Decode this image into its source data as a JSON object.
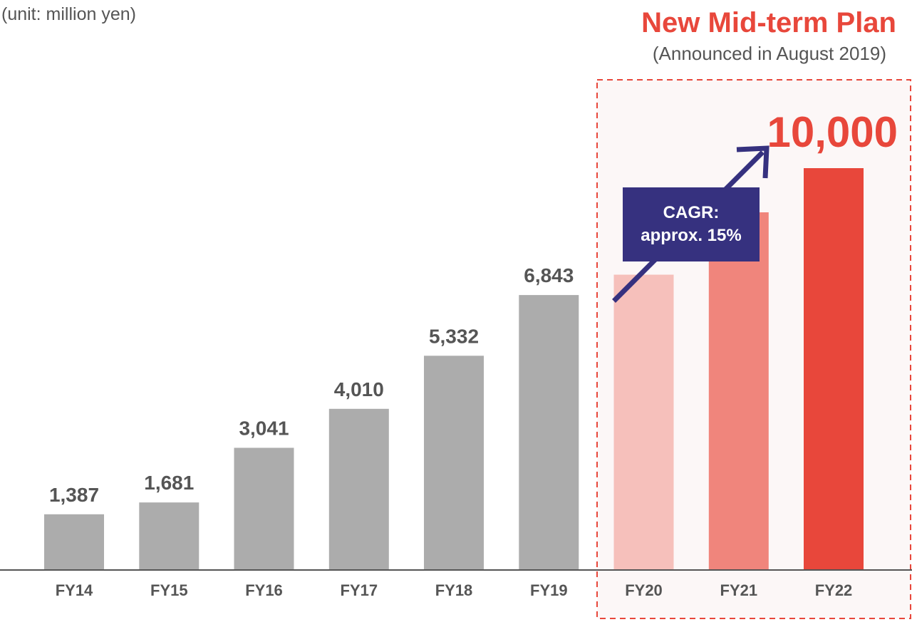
{
  "header": {
    "unit": "(unit: million yen)",
    "plan_title": "New Mid-term Plan",
    "plan_subtitle": "(Announced in August 2019)"
  },
  "callout": {
    "line1": "CAGR:",
    "line2": "approx. 15%",
    "color": "#36317f"
  },
  "colors": {
    "actual": "#acacac",
    "plan_fy20": "#f6c0bb",
    "plan_fy21": "#f0857c",
    "plan_fy22": "#e8473b",
    "accent": "#e8473b",
    "highlight_fill": "#fcf7f7",
    "text": "#555555"
  },
  "chart_data": {
    "type": "bar",
    "title": "",
    "xlabel": "",
    "ylabel": "",
    "ylim": [
      0,
      10000
    ],
    "categories": [
      "FY14",
      "FY15",
      "FY16",
      "FY17",
      "FY18",
      "FY19",
      "FY20",
      "FY21",
      "FY22"
    ],
    "values": [
      1387,
      1681,
      3041,
      4010,
      5332,
      6843,
      7350,
      8900,
      10000
    ],
    "data_labels": [
      "1,387",
      "1,681",
      "3,041",
      "4,010",
      "5,332",
      "6,843",
      "",
      "",
      "10,000"
    ],
    "highlight_categories": [
      "FY20",
      "FY21",
      "FY22"
    ],
    "grid": false,
    "legend": "none"
  }
}
